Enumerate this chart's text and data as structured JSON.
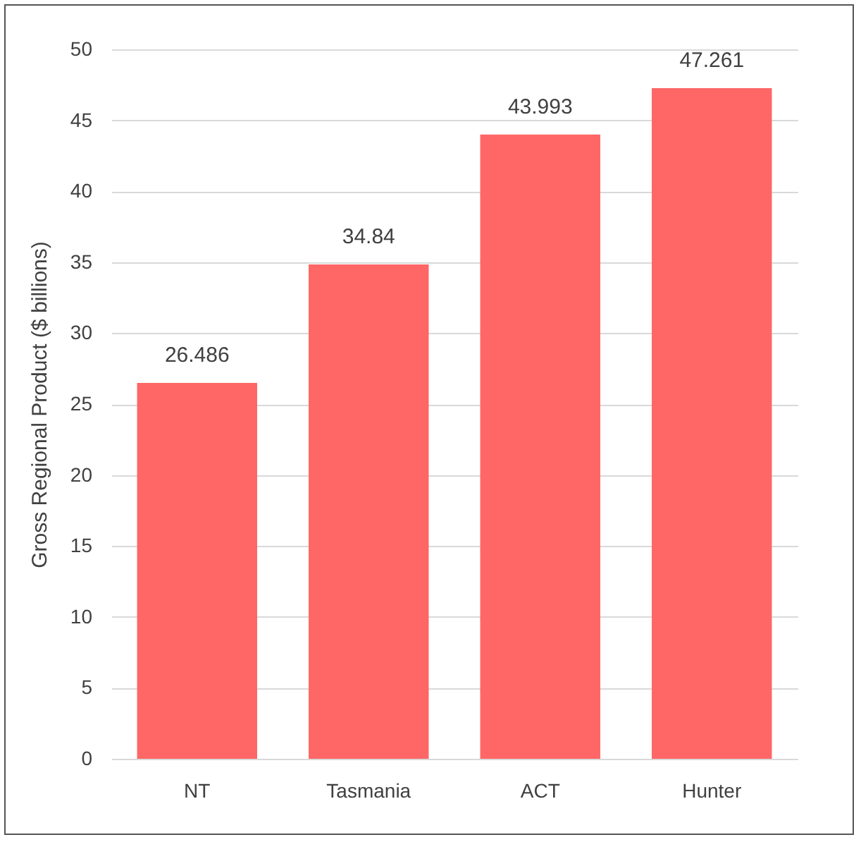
{
  "chart_data": {
    "type": "bar",
    "ylabel": "Gross Regional Product ($ billions)",
    "categories": [
      "NT",
      "Tasmania",
      "ACT",
      "Hunter"
    ],
    "values": [
      26.486,
      34.84,
      43.993,
      47.261
    ],
    "color": "#ff6666",
    "ylim": [
      0,
      50
    ],
    "yticks": [
      0,
      5,
      10,
      15,
      20,
      25,
      30,
      35,
      40,
      45,
      50
    ],
    "grid": "y",
    "data_labels": true
  }
}
